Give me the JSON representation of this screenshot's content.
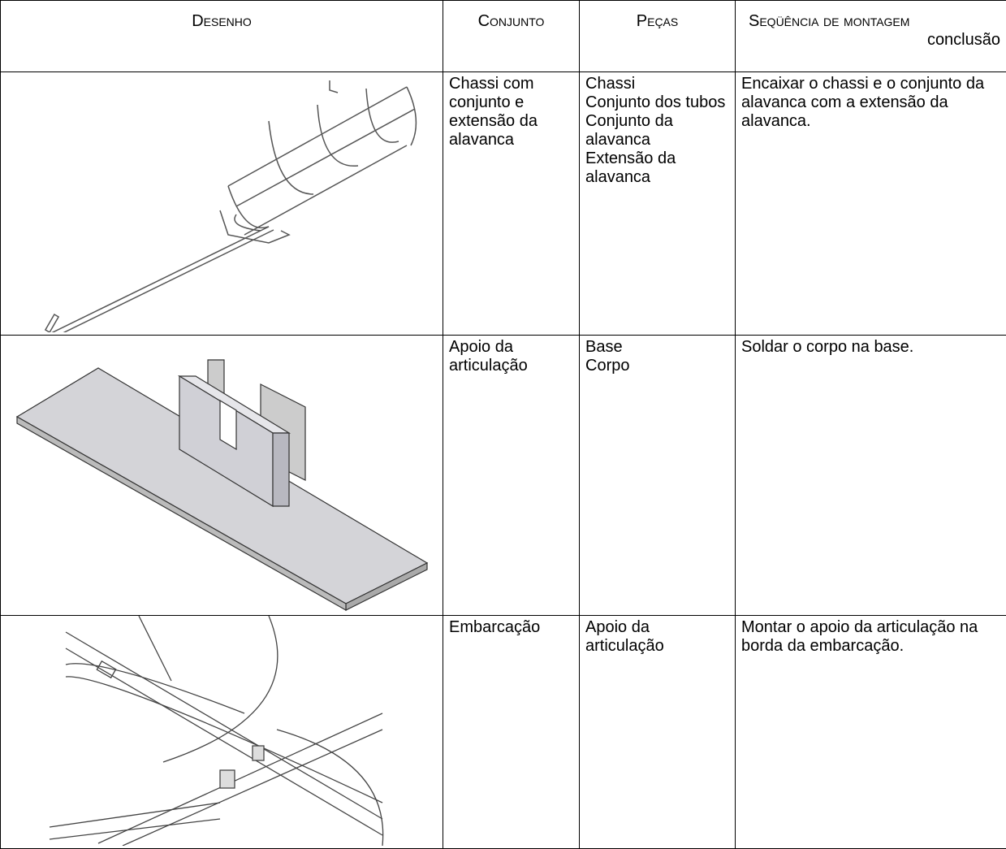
{
  "table": {
    "header": {
      "drawing": "Desenho",
      "assembly": "Conjunto",
      "parts": "Peças",
      "sequence": "Seqüência de montagem",
      "sequence_note": "conclusão"
    },
    "rows": [
      {
        "assembly": "Chassi com conjunto e extensão da alavanca",
        "parts": [
          "Chassi",
          "Conjunto dos tubos",
          "Conjunto da alavanca",
          "Extensão da alavanca"
        ],
        "sequence": "Encaixar o chassi e o conjunto da alavanca com a extensão da alavanca."
      },
      {
        "assembly": "Apoio da articulação",
        "parts": [
          "Base",
          "Corpo"
        ],
        "sequence": "Soldar o corpo na base."
      },
      {
        "assembly": "Embarcação",
        "parts": [
          "Apoio da articulação"
        ],
        "sequence": "Montar o apoio da articulação na borda da embarcação."
      }
    ]
  }
}
